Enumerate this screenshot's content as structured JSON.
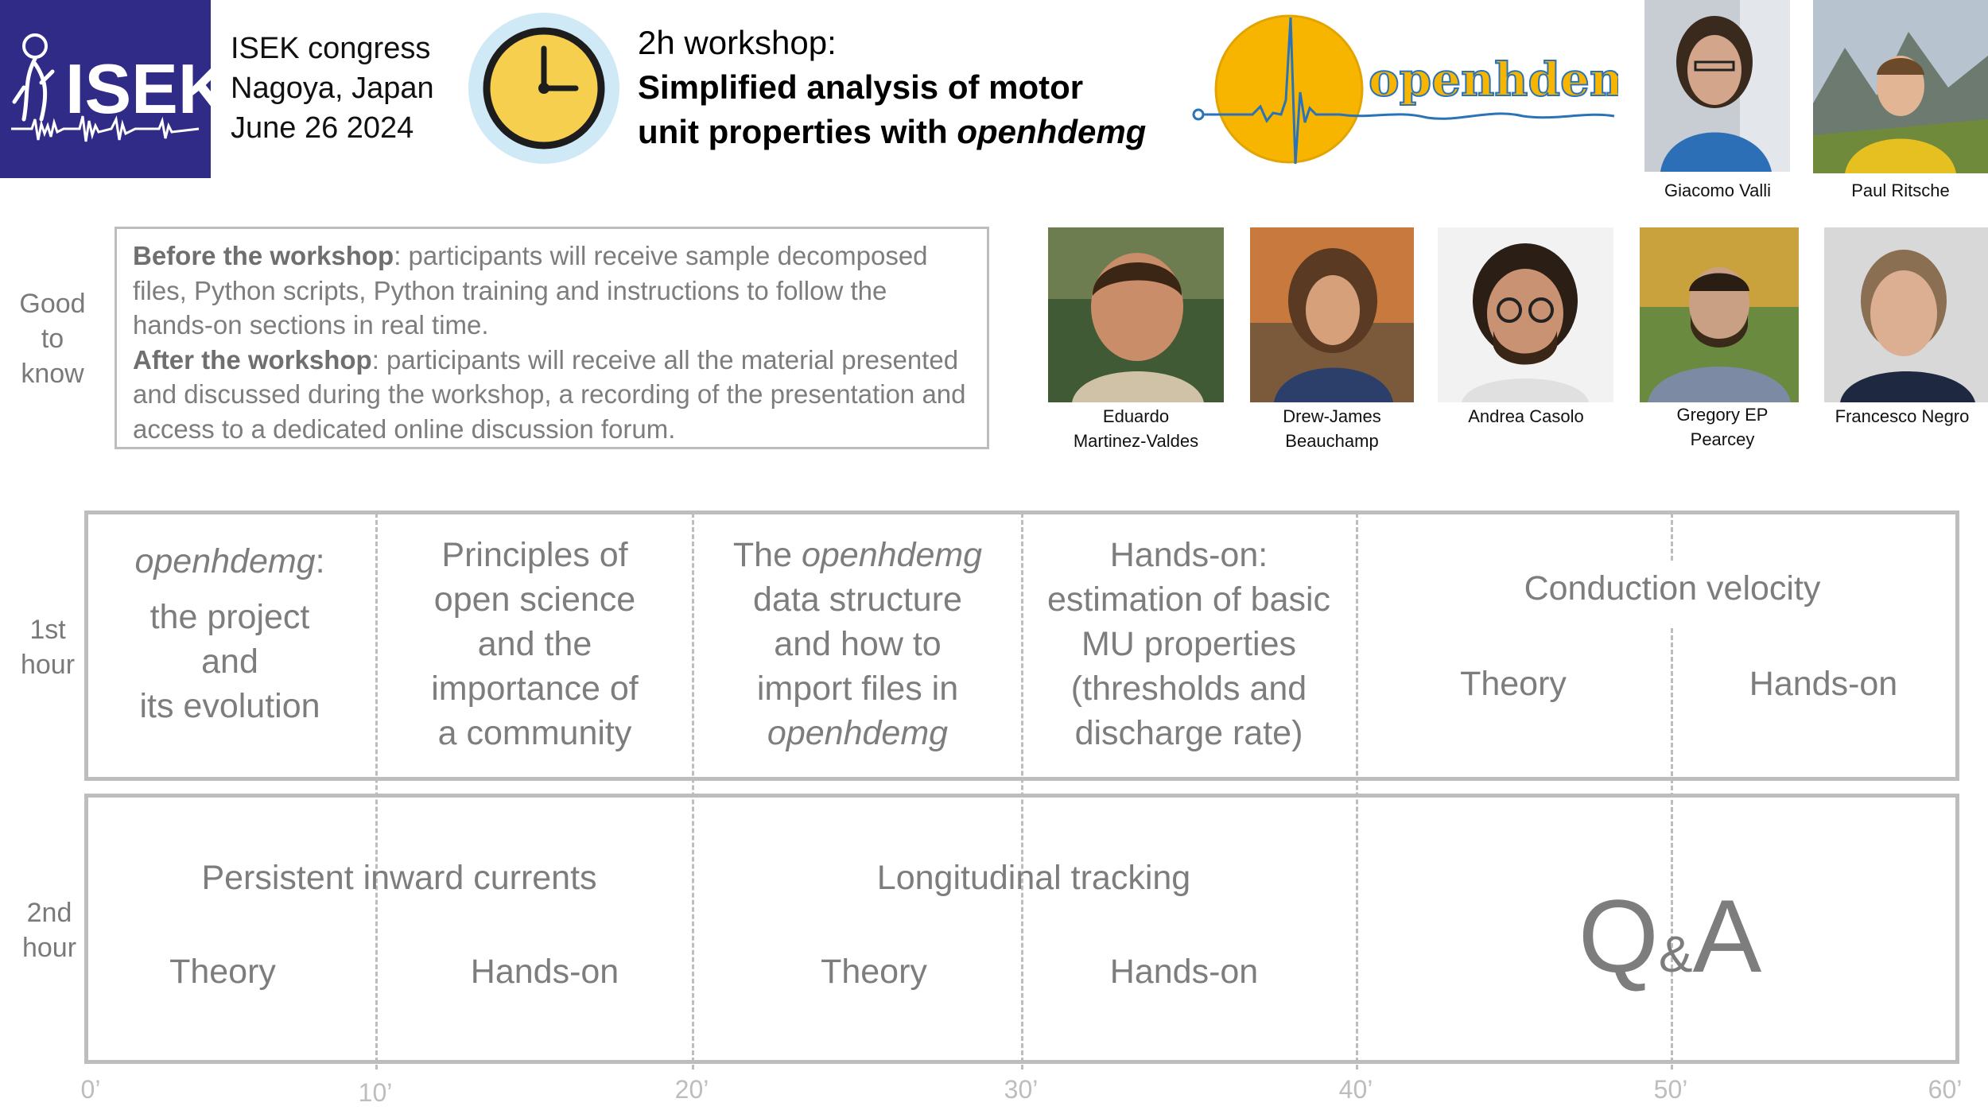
{
  "header": {
    "event": [
      "ISEK congress",
      "Nagoya, Japan",
      "June 26 2024"
    ],
    "logo_text": "ISEK",
    "workshop_duration": "2h workshop:",
    "workshop_title_line1": "Simplified analysis of motor",
    "workshop_title_line2_prefix": "unit properties with ",
    "workshop_title_line2_italic": "openhdemg",
    "brand_logo_text": "openhdemg"
  },
  "presenters": [
    {
      "name_line1": "Giacomo Valli",
      "name_line2": ""
    },
    {
      "name_line1": "Paul Ritsche",
      "name_line2": ""
    },
    {
      "name_line1": "Eduardo",
      "name_line2": "Martinez-Valdes"
    },
    {
      "name_line1": "Drew-James",
      "name_line2": "Beauchamp"
    },
    {
      "name_line1": "Andrea Casolo",
      "name_line2": ""
    },
    {
      "name_line1": "Gregory EP",
      "name_line2": "Pearcey"
    },
    {
      "name_line1": "Francesco Negro",
      "name_line2": ""
    }
  ],
  "good_to_know": {
    "label": [
      "Good",
      "to",
      "know"
    ],
    "before_title": "Before the workshop",
    "before_text": ": participants will receive sample decomposed files, Python scripts, Python training and instructions to follow the hands-on sections in real time.",
    "after_title": "After the workshop",
    "after_text": ": participants will receive all the material presented and discussed during the workshop, a recording of the presentation and access to a dedicated online discussion forum."
  },
  "schedule": {
    "hour1_label": [
      "1st",
      "hour"
    ],
    "hour2_label": [
      "2nd",
      "hour"
    ],
    "hour1": {
      "project_italic": "openhdemg",
      "project_colon": ":",
      "project_lines": [
        "the project",
        "and",
        "its evolution"
      ],
      "open_science": [
        "Principles of",
        "open science",
        "and the",
        "importance of",
        "a community"
      ],
      "data_structure_prefix": "The ",
      "data_structure_italic": "openhdemg",
      "data_structure_lines": [
        "data structure",
        "and how to",
        "import files in"
      ],
      "data_structure_last_italic": "openhdemg",
      "handson_basic": [
        "Hands-on:",
        "estimation of basic",
        "MU properties",
        "(thresholds and",
        "discharge rate)"
      ],
      "cv_title": "Conduction velocity",
      "cv_theory": "Theory",
      "cv_handson": "Hands-on"
    },
    "hour2": {
      "pic_title": "Persistent inward currents",
      "pic_theory": "Theory",
      "pic_handson": "Hands-on",
      "lt_title": "Longitudinal tracking",
      "lt_theory": "Theory",
      "lt_handson": "Hands-on",
      "qa_q": "Q",
      "qa_amp": "&",
      "qa_a": "A"
    },
    "ticks": [
      "0’",
      "10’",
      "20’",
      "30’",
      "40’",
      "50’",
      "60’"
    ]
  },
  "colors": {
    "isek_blue": "#2f2b86",
    "clock_ring": "#cfe9f7",
    "clock_face": "#f6cf4e",
    "brand_yellow": "#f7b500",
    "brand_blue": "#2a73b8",
    "grey_text": "#7d7d7d",
    "grey_line": "#bdbdbd"
  }
}
